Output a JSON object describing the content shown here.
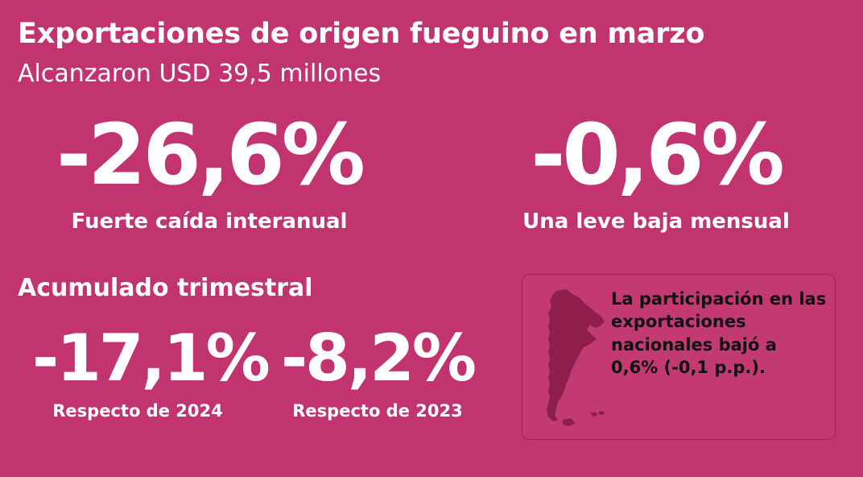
{
  "header": {
    "title": "Exportaciones de origen fueguino en marzo",
    "subtitle": "Alcanzaron USD 39,5 millones"
  },
  "kpis": {
    "interannual": {
      "value": "-26,6%",
      "label": "Fuerte caída interanual"
    },
    "monthly": {
      "value": "-0,6%",
      "label": "Una leve baja mensual"
    }
  },
  "quarterly": {
    "title": "Acumulado trimestral",
    "vs2024": {
      "value": "-17,1%",
      "label": "Respecto de 2024"
    },
    "vs2023": {
      "value": "-8,2%",
      "label": "Respecto de 2023"
    }
  },
  "info_card": {
    "text": "La participación en las exportaciones nacionales bajó a 0,6% (-0,1 p.p.).",
    "icon": "argentina-map-icon"
  },
  "colors": {
    "background": "#c2346f",
    "map": "#8e1f4b",
    "card_text": "#111111",
    "text": "#ffffff"
  }
}
